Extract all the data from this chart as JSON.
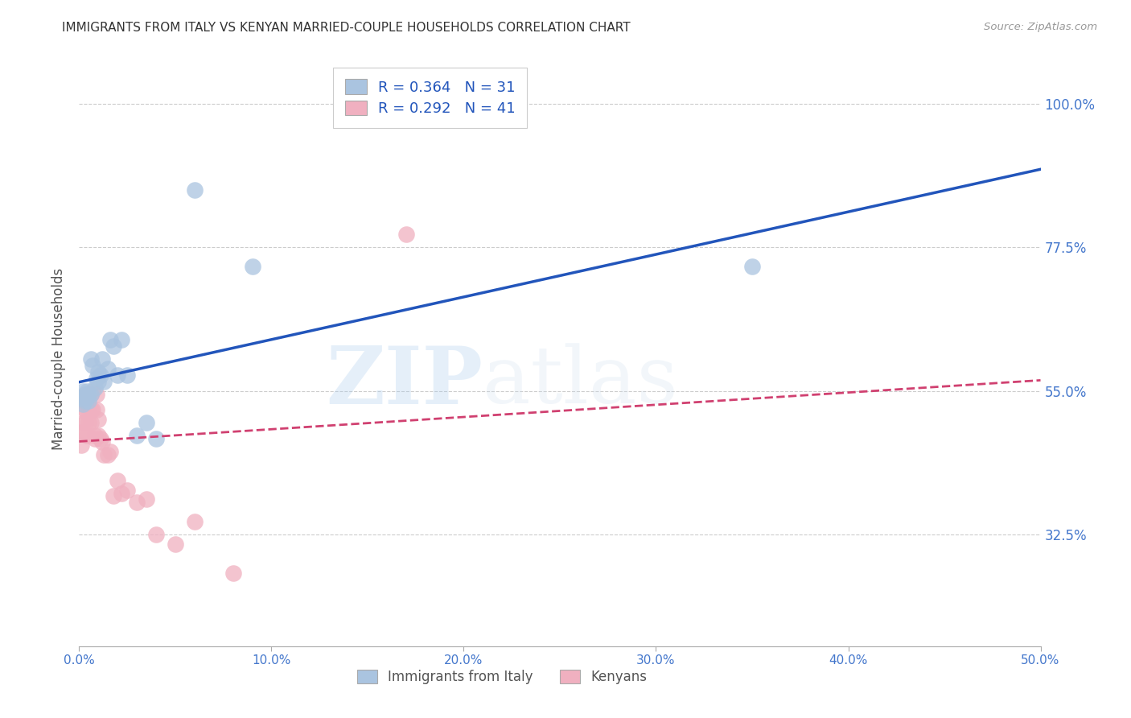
{
  "title": "IMMIGRANTS FROM ITALY VS KENYAN MARRIED-COUPLE HOUSEHOLDS CORRELATION CHART",
  "source": "Source: ZipAtlas.com",
  "ylabel": "Married-couple Households",
  "yticks": [
    0.325,
    0.55,
    0.775,
    1.0
  ],
  "ytick_labels": [
    "32.5%",
    "55.0%",
    "77.5%",
    "100.0%"
  ],
  "xmin": 0.0,
  "xmax": 0.5,
  "ymin": 0.15,
  "ymax": 1.05,
  "watermark": "ZIPatlas",
  "italy_x": [
    0.001,
    0.002,
    0.002,
    0.003,
    0.003,
    0.004,
    0.004,
    0.005,
    0.005,
    0.006,
    0.006,
    0.007,
    0.008,
    0.009,
    0.01,
    0.01,
    0.011,
    0.012,
    0.013,
    0.015,
    0.016,
    0.018,
    0.02,
    0.022,
    0.025,
    0.03,
    0.035,
    0.04,
    0.06,
    0.09,
    0.35
  ],
  "italy_y": [
    0.54,
    0.55,
    0.53,
    0.545,
    0.535,
    0.55,
    0.54,
    0.535,
    0.545,
    0.545,
    0.6,
    0.59,
    0.555,
    0.57,
    0.565,
    0.58,
    0.575,
    0.6,
    0.565,
    0.585,
    0.63,
    0.62,
    0.575,
    0.63,
    0.575,
    0.48,
    0.5,
    0.475,
    0.865,
    0.745,
    0.745
  ],
  "kenya_x": [
    0.001,
    0.001,
    0.002,
    0.002,
    0.002,
    0.003,
    0.003,
    0.003,
    0.004,
    0.004,
    0.004,
    0.005,
    0.005,
    0.005,
    0.006,
    0.006,
    0.006,
    0.007,
    0.007,
    0.008,
    0.008,
    0.009,
    0.009,
    0.01,
    0.01,
    0.011,
    0.012,
    0.013,
    0.015,
    0.016,
    0.018,
    0.02,
    0.022,
    0.025,
    0.03,
    0.035,
    0.04,
    0.05,
    0.06,
    0.08,
    0.17
  ],
  "kenya_y": [
    0.485,
    0.465,
    0.535,
    0.5,
    0.485,
    0.545,
    0.52,
    0.5,
    0.535,
    0.515,
    0.48,
    0.545,
    0.52,
    0.5,
    0.545,
    0.52,
    0.5,
    0.55,
    0.52,
    0.48,
    0.475,
    0.545,
    0.52,
    0.505,
    0.48,
    0.475,
    0.47,
    0.45,
    0.45,
    0.455,
    0.385,
    0.41,
    0.39,
    0.395,
    0.375,
    0.38,
    0.325,
    0.31,
    0.345,
    0.265,
    0.795
  ],
  "italy_color": "#aac4e0",
  "italy_line_color": "#2255bb",
  "kenya_color": "#f0b0c0",
  "kenya_line_color": "#d04070",
  "background_color": "#ffffff",
  "grid_color": "#cccccc",
  "axis_label_color": "#4477cc",
  "title_color": "#333333",
  "italy_R": 0.364,
  "italy_N": 31,
  "kenya_R": 0.292,
  "kenya_N": 41
}
